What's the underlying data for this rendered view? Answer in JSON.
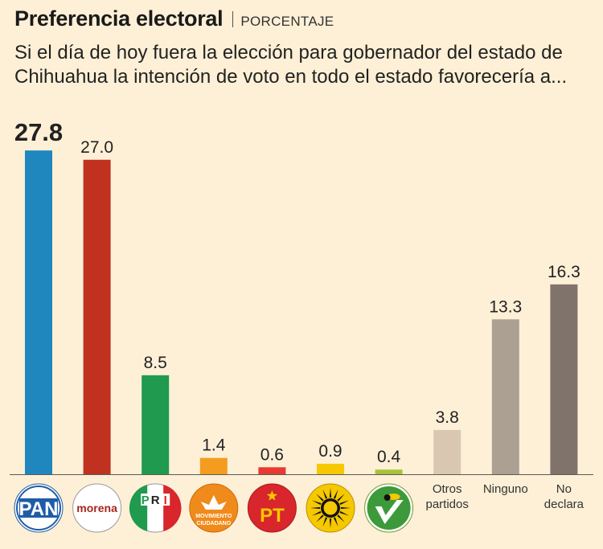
{
  "chart_data": {
    "type": "bar",
    "title": "Preferencia electoral",
    "unit": "PORCENTAJE",
    "subtitle": "Si el día de hoy fuera la elección para gobernador del estado de Chihuahua la intención de voto en todo el estado favorecería a...",
    "categories": [
      "PAN",
      "morena",
      "PRI",
      "MOVIMIENTO CIUDADANO",
      "PT",
      "PRD",
      "PVEM",
      "Otros partidos",
      "Ninguno",
      "No declara"
    ],
    "values": [
      27.8,
      27.0,
      8.5,
      1.4,
      0.6,
      0.9,
      0.4,
      3.8,
      13.3,
      16.3
    ],
    "value_labels": [
      "27.8",
      "27.0",
      "8.5",
      "1.4",
      "0.6",
      "0.9",
      "0.4",
      "3.8",
      "13.3",
      "16.3"
    ],
    "category_labels": [
      {
        "kind": "logo",
        "lines": [
          "PAN"
        ]
      },
      {
        "kind": "logo",
        "lines": [
          "morena"
        ]
      },
      {
        "kind": "logo",
        "lines": [
          "P",
          "R",
          "I"
        ]
      },
      {
        "kind": "logo",
        "lines": [
          "MOVIMIENTO",
          "CIUDADANO"
        ]
      },
      {
        "kind": "logo",
        "lines": [
          "PT"
        ]
      },
      {
        "kind": "logo",
        "lines": []
      },
      {
        "kind": "logo",
        "lines": []
      },
      {
        "kind": "text",
        "lines": [
          "Otros",
          "partidos"
        ]
      },
      {
        "kind": "text",
        "lines": [
          "Ninguno"
        ]
      },
      {
        "kind": "text",
        "lines": [
          "No",
          "declara"
        ]
      }
    ],
    "colors": [
      "#1f87be",
      "#c0321f",
      "#1f9a4f",
      "#f39c1f",
      "#e63a33",
      "#f5c800",
      "#a8c23a",
      "#d9c7b2",
      "#aba092",
      "#7f736b"
    ],
    "highlight_index": 0,
    "ylim": [
      0,
      30
    ],
    "xlabel": "",
    "ylabel": "",
    "grid": false,
    "legend": "none"
  }
}
